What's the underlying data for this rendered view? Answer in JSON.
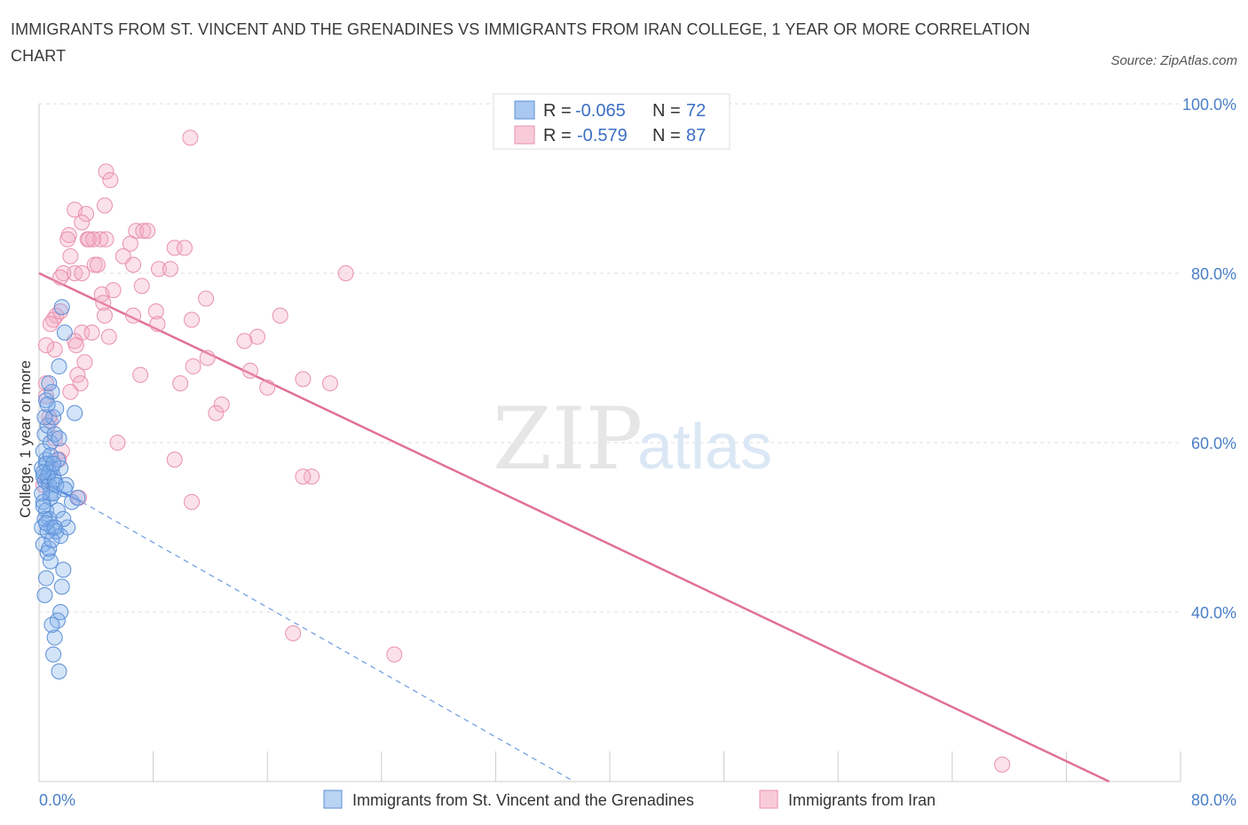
{
  "title": "IMMIGRANTS FROM ST. VINCENT AND THE GRENADINES VS IMMIGRANTS FROM IRAN COLLEGE, 1 YEAR OR MORE CORRELATION CHART",
  "source": "Source: ZipAtlas.com",
  "watermark": {
    "zip": "ZIP",
    "atlas": "atlas"
  },
  "colors": {
    "blue": "#5b8fd6",
    "blue_fill": "#a9c8f0",
    "pink": "#e07098",
    "pink_fill": "#f4b8cb",
    "grid": "#dddddd",
    "axis_text": "#4a7fc8"
  },
  "legend": {
    "rows": [
      {
        "r_label": "R =",
        "r_value": "-0.065",
        "n_label": "N =",
        "n_value": "72"
      },
      {
        "r_label": "R =",
        "r_value": "-0.579",
        "n_label": "N =",
        "n_value": "87"
      }
    ]
  },
  "chart_data": {
    "type": "scatter",
    "title": "IMMIGRANTS FROM ST. VINCENT AND THE GRENADINES VS IMMIGRANTS FROM IRAN COLLEGE, 1 YEAR OR MORE CORRELATION CHART",
    "xlabel": "",
    "ylabel": "College, 1 year or more",
    "xlim": [
      0,
      80
    ],
    "ylim": [
      20,
      100
    ],
    "x_tick_labels": [
      "0.0%",
      "80.0%"
    ],
    "y_tick_labels": [
      "100.0%",
      "80.0%",
      "60.0%",
      "40.0%"
    ],
    "y_ticks": [
      100,
      80,
      60,
      40
    ],
    "series": [
      {
        "name": "Immigrants from St. Vincent and the Grenadines",
        "R": -0.065,
        "N": 72,
        "trend": {
          "x0": 0,
          "y0": 55.5,
          "x1": 3,
          "y1": 53.0,
          "dashed_to_x": 37.5,
          "dashed_to_y": 20
        },
        "points": [
          [
            0.2,
            57
          ],
          [
            0.3,
            56
          ],
          [
            0.4,
            55.5
          ],
          [
            0.5,
            58
          ],
          [
            0.6,
            56
          ],
          [
            0.7,
            55
          ],
          [
            0.8,
            54
          ],
          [
            0.9,
            57
          ],
          [
            1.0,
            56
          ],
          [
            1.1,
            55.5
          ],
          [
            0.3,
            53
          ],
          [
            0.5,
            52
          ],
          [
            0.7,
            51
          ],
          [
            0.9,
            50
          ],
          [
            1.2,
            49.5
          ],
          [
            1.5,
            49
          ],
          [
            2.0,
            50
          ],
          [
            1.3,
            52
          ],
          [
            1.7,
            51
          ],
          [
            2.3,
            53
          ],
          [
            0.4,
            61
          ],
          [
            0.6,
            62
          ],
          [
            0.8,
            60
          ],
          [
            1.0,
            63
          ],
          [
            1.2,
            64
          ],
          [
            0.5,
            65
          ],
          [
            0.9,
            66
          ],
          [
            1.4,
            69
          ],
          [
            1.8,
            73
          ],
          [
            1.6,
            76
          ],
          [
            2.5,
            63.5
          ],
          [
            0.7,
            67
          ],
          [
            1.1,
            61
          ],
          [
            1.3,
            58
          ],
          [
            1.9,
            55
          ],
          [
            0.3,
            48
          ],
          [
            0.6,
            47
          ],
          [
            0.8,
            46
          ],
          [
            0.5,
            44
          ],
          [
            0.4,
            42
          ],
          [
            1.6,
            43
          ],
          [
            1.7,
            45
          ],
          [
            1.5,
            40
          ],
          [
            1.3,
            39
          ],
          [
            1.1,
            37
          ],
          [
            0.9,
            38.5
          ],
          [
            1.0,
            35
          ],
          [
            1.4,
            33
          ],
          [
            0.2,
            50
          ],
          [
            0.4,
            51
          ],
          [
            0.6,
            49.5
          ],
          [
            0.8,
            53.5
          ],
          [
            1.0,
            54
          ],
          [
            1.2,
            55
          ],
          [
            0.3,
            59
          ],
          [
            0.5,
            57.5
          ],
          [
            0.7,
            56.5
          ],
          [
            1.5,
            57
          ],
          [
            1.8,
            54.5
          ],
          [
            2.7,
            53.5
          ],
          [
            0.2,
            54
          ],
          [
            0.3,
            52.5
          ],
          [
            0.5,
            50.5
          ],
          [
            0.7,
            47.5
          ],
          [
            0.9,
            48.5
          ],
          [
            1.1,
            50
          ],
          [
            0.4,
            63
          ],
          [
            0.6,
            64.5
          ],
          [
            1.4,
            60.5
          ],
          [
            0.8,
            58.5
          ],
          [
            0.3,
            56.5
          ],
          [
            1.0,
            57.5
          ]
        ]
      },
      {
        "name": "Immigrants from Iran",
        "R": -0.579,
        "N": 87,
        "trend": {
          "x0": 0,
          "y0": 80,
          "x1": 75,
          "y1": 20
        },
        "points": [
          [
            10.6,
            96
          ],
          [
            4.7,
            92
          ],
          [
            5.0,
            91
          ],
          [
            4.6,
            88
          ],
          [
            2.5,
            87.5
          ],
          [
            3.3,
            87
          ],
          [
            3.0,
            86
          ],
          [
            6.8,
            85
          ],
          [
            7.3,
            85
          ],
          [
            7.6,
            85
          ],
          [
            2.1,
            84.5
          ],
          [
            3.4,
            84
          ],
          [
            2.0,
            84
          ],
          [
            3.5,
            84
          ],
          [
            4.3,
            84
          ],
          [
            4.7,
            84
          ],
          [
            3.8,
            84
          ],
          [
            6.4,
            83.5
          ],
          [
            9.5,
            83
          ],
          [
            10.2,
            83
          ],
          [
            5.9,
            82
          ],
          [
            2.2,
            82
          ],
          [
            6.6,
            81
          ],
          [
            3.9,
            81
          ],
          [
            4.1,
            81
          ],
          [
            8.4,
            80.5
          ],
          [
            9.2,
            80.5
          ],
          [
            2.5,
            80
          ],
          [
            1.7,
            80
          ],
          [
            21.5,
            80
          ],
          [
            3.0,
            80
          ],
          [
            1.5,
            79.5
          ],
          [
            7.2,
            78.5
          ],
          [
            4.4,
            77.5
          ],
          [
            4.5,
            76.5
          ],
          [
            11.7,
            77
          ],
          [
            8.2,
            75.5
          ],
          [
            6.6,
            75
          ],
          [
            4.6,
            75
          ],
          [
            1.2,
            75
          ],
          [
            1.0,
            74.5
          ],
          [
            16.9,
            75
          ],
          [
            1.5,
            75.5
          ],
          [
            10.7,
            74.5
          ],
          [
            0.8,
            74
          ],
          [
            3.0,
            73
          ],
          [
            3.7,
            73
          ],
          [
            15.3,
            72.5
          ],
          [
            14.4,
            72
          ],
          [
            2.5,
            72
          ],
          [
            1.1,
            71
          ],
          [
            0.5,
            71.5
          ],
          [
            2.6,
            71.5
          ],
          [
            4.9,
            72.5
          ],
          [
            11.8,
            70
          ],
          [
            3.2,
            69.5
          ],
          [
            10.8,
            69
          ],
          [
            14.8,
            68.5
          ],
          [
            7.1,
            68
          ],
          [
            2.7,
            68
          ],
          [
            9.9,
            67
          ],
          [
            18.5,
            67.5
          ],
          [
            20.4,
            67
          ],
          [
            0.5,
            67
          ],
          [
            2.9,
            67
          ],
          [
            16.0,
            66.5
          ],
          [
            0.5,
            65.5
          ],
          [
            12.8,
            64.5
          ],
          [
            12.4,
            63.5
          ],
          [
            0.8,
            62.5
          ],
          [
            5.5,
            60
          ],
          [
            1.6,
            59
          ],
          [
            9.5,
            58
          ],
          [
            1.4,
            58
          ],
          [
            19.1,
            56
          ],
          [
            0.3,
            55
          ],
          [
            2.8,
            53.5
          ],
          [
            10.7,
            53
          ],
          [
            18.5,
            56
          ],
          [
            17.8,
            37.5
          ],
          [
            24.9,
            35
          ],
          [
            67.5,
            22
          ],
          [
            1.1,
            60.5
          ],
          [
            0.7,
            63
          ],
          [
            2.2,
            66
          ],
          [
            8.3,
            74
          ],
          [
            5.2,
            78
          ]
        ]
      }
    ],
    "legend_position": "top-center"
  },
  "bottom_legend": [
    "Immigrants from St. Vincent and the Grenadines",
    "Immigrants from Iran"
  ]
}
